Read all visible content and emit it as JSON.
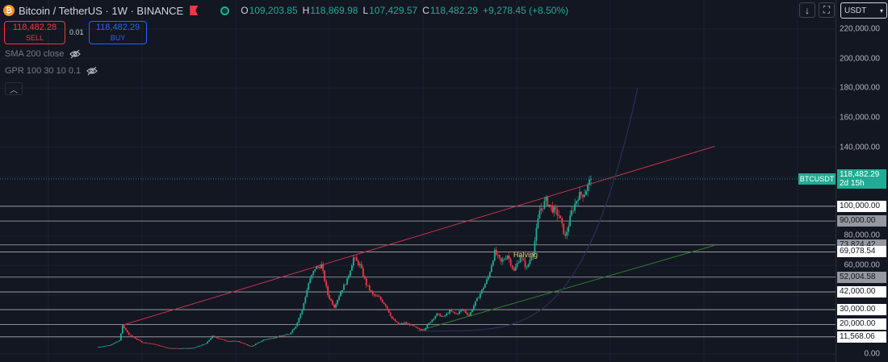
{
  "header": {
    "coin_glyph": "₿",
    "symbol": "Bitcoin / TetherUS · 1W · BINANCE",
    "ohlc": [
      {
        "label": "O",
        "value": "109,203.85"
      },
      {
        "label": "H",
        "value": "118,869.98"
      },
      {
        "label": "L",
        "value": "107,429.57"
      },
      {
        "label": "C",
        "value": "118,482.29"
      }
    ],
    "change": "+9,278.45 (+8.50%)"
  },
  "trade": {
    "sell_price": "118,482.28",
    "sell_label": "SELL",
    "spread": "0.01",
    "buy_price": "118,482.29",
    "buy_label": "BUY"
  },
  "indicators": [
    {
      "label": "SMA 200 close",
      "icon": "eye-off-icon"
    },
    {
      "label": "GPR 100 30 10 0.1",
      "icon": "eye-off-icon"
    }
  ],
  "toolbar": {
    "currency": "USDT"
  },
  "current": {
    "tag": "BTCUSDT",
    "price": "118,482.29",
    "countdown": "2d 15h"
  },
  "colors": {
    "background": "#131722",
    "up": "#22ab94",
    "down": "#f23645",
    "buy": "#2962ff",
    "resistance_line": "#c2334a",
    "support_line": "#2e7d32"
  },
  "annotation": "Halving",
  "chart_data": {
    "type": "candlestick",
    "symbol": "BTCUSDT",
    "interval": "1W",
    "ylim": [
      0,
      230000
    ],
    "y_ticks": [
      0,
      20000,
      40000,
      60000,
      80000,
      100000,
      120000,
      140000,
      160000,
      180000,
      200000,
      220000
    ],
    "y_tick_labels_visible": [
      "0.00",
      "60,000.00",
      "80,000.00",
      "140,000.00",
      "160,000.00",
      "180,000.00",
      "200,000.00",
      "220,000.00"
    ],
    "horizontal_levels": [
      {
        "value": 100000,
        "label": "100,000.00",
        "style": "white"
      },
      {
        "value": 90000,
        "label": "90,000.00",
        "style": "grey"
      },
      {
        "value": 73824.42,
        "label": "73,824.42",
        "style": "grey"
      },
      {
        "value": 69078.54,
        "label": "69,078.54",
        "style": "white"
      },
      {
        "value": 52004.58,
        "label": "52,004.58",
        "style": "grey"
      },
      {
        "value": 42000,
        "label": "42,000.00",
        "style": "white"
      },
      {
        "value": 30000,
        "label": "30,000.00",
        "style": "white"
      },
      {
        "value": 20000,
        "label": "20,000.00",
        "style": "white"
      },
      {
        "value": 11568.06,
        "label": "11,568.06",
        "style": "white"
      }
    ],
    "price_path": [
      [
        0,
        4500
      ],
      [
        4,
        6000
      ],
      [
        7,
        9000
      ],
      [
        8,
        19000
      ],
      [
        10,
        13000
      ],
      [
        14,
        8000
      ],
      [
        18,
        6500
      ],
      [
        22,
        4000
      ],
      [
        26,
        3800
      ],
      [
        30,
        4000
      ],
      [
        34,
        7000
      ],
      [
        36,
        12000
      ],
      [
        40,
        9000
      ],
      [
        44,
        8500
      ],
      [
        48,
        5000
      ],
      [
        52,
        9500
      ],
      [
        56,
        11500
      ],
      [
        60,
        13500
      ],
      [
        62,
        19000
      ],
      [
        64,
        30000
      ],
      [
        66,
        48000
      ],
      [
        68,
        58000
      ],
      [
        70,
        60000
      ],
      [
        72,
        40000
      ],
      [
        74,
        32000
      ],
      [
        76,
        42000
      ],
      [
        78,
        50000
      ],
      [
        80,
        65000
      ],
      [
        82,
        60000
      ],
      [
        84,
        47000
      ],
      [
        86,
        40000
      ],
      [
        88,
        38000
      ],
      [
        90,
        33000
      ],
      [
        92,
        24000
      ],
      [
        94,
        20000
      ],
      [
        96,
        21000
      ],
      [
        98,
        19500
      ],
      [
        100,
        17000
      ],
      [
        102,
        16500
      ],
      [
        104,
        22000
      ],
      [
        106,
        27000
      ],
      [
        108,
        25000
      ],
      [
        110,
        29000
      ],
      [
        112,
        27000
      ],
      [
        114,
        30000
      ],
      [
        116,
        26000
      ],
      [
        118,
        35000
      ],
      [
        120,
        43000
      ],
      [
        122,
        52000
      ],
      [
        124,
        69000
      ],
      [
        126,
        62000
      ],
      [
        128,
        67000
      ],
      [
        130,
        56000
      ],
      [
        132,
        66000
      ],
      [
        134,
        58000
      ],
      [
        136,
        70000
      ],
      [
        138,
        97000
      ],
      [
        140,
        104000
      ],
      [
        142,
        98000
      ],
      [
        144,
        94000
      ],
      [
        146,
        79000
      ],
      [
        148,
        96000
      ],
      [
        150,
        107000
      ],
      [
        152,
        109000
      ],
      [
        154,
        118482
      ]
    ]
  }
}
